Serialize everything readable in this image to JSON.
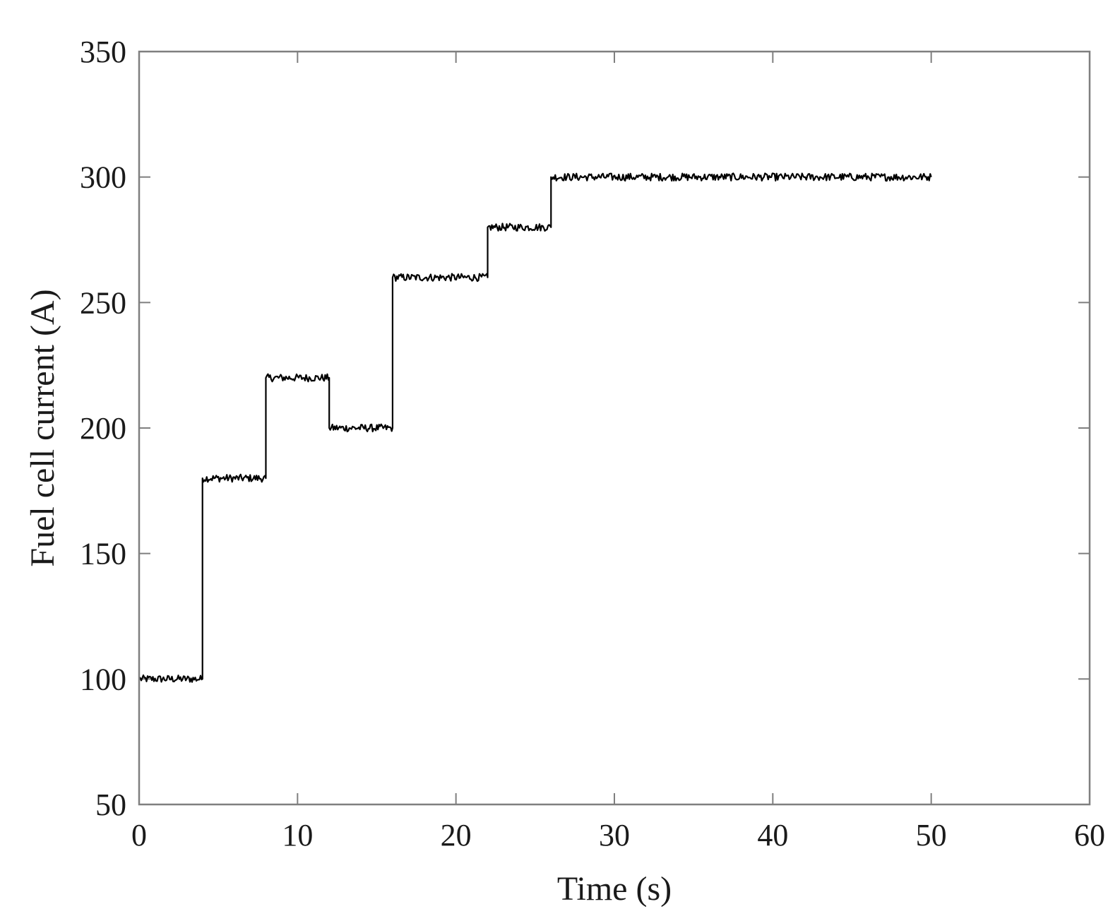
{
  "chart_data": {
    "type": "line",
    "xlabel": "Time (s)",
    "ylabel": "Fuel cell current (A)",
    "xlim": [
      0,
      60
    ],
    "ylim": [
      50,
      350
    ],
    "x_ticks": [
      0,
      10,
      20,
      30,
      40,
      50,
      60
    ],
    "y_ticks": [
      50,
      100,
      150,
      200,
      250,
      300,
      350
    ],
    "x_tick_labels": [
      "0",
      "10",
      "20",
      "30",
      "40",
      "50",
      "60"
    ],
    "y_tick_labels": [
      "50",
      "100",
      "150",
      "200",
      "250",
      "300",
      "350"
    ],
    "grid": false,
    "legend": "none",
    "line_color": "#000000",
    "series": [
      {
        "x": [
          0,
          4,
          4,
          8,
          8,
          12,
          12,
          16,
          16,
          22,
          22,
          26,
          26,
          50
        ],
        "y": [
          100,
          100,
          180,
          180,
          220,
          220,
          200,
          200,
          260,
          260,
          280,
          280,
          300,
          300
        ],
        "noise_amplitude": 1.5
      }
    ]
  }
}
